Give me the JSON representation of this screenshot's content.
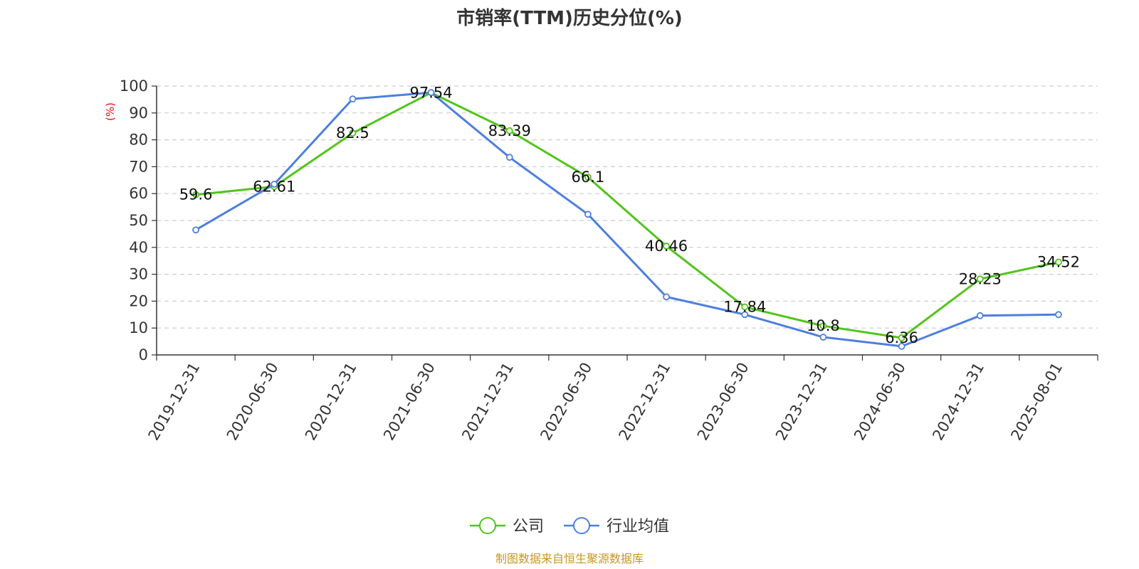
{
  "chart_data": {
    "type": "line",
    "title": "市销率(TTM)历史分位(%)",
    "ylabel": "(%)",
    "ylim": [
      0,
      100
    ],
    "yticks": [
      "0",
      "10",
      "20",
      "30",
      "40",
      "50",
      "60",
      "70",
      "80",
      "90",
      "100"
    ],
    "grid": true,
    "legend_position": "bottom-center",
    "categories": [
      "2019-12-31",
      "2020-06-30",
      "2020-12-31",
      "2021-06-30",
      "2021-12-31",
      "2022-06-30",
      "2022-12-31",
      "2023-06-30",
      "2023-12-31",
      "2024-06-30",
      "2024-12-31",
      "2025-08-01"
    ],
    "series": [
      {
        "name": "公司",
        "color": "#52c41a",
        "values": [
          59.6,
          62.61,
          82.5,
          97.54,
          83.39,
          66.1,
          40.46,
          17.84,
          10.8,
          6.36,
          28.23,
          34.52
        ],
        "labels": [
          "59.6",
          "62.61",
          "82.5",
          "97.54",
          "83.39",
          "66.1",
          "40.46",
          "17.84",
          "10.8",
          "6.36",
          "28.23",
          "34.52"
        ]
      },
      {
        "name": "行业均值",
        "color": "#4e7fdf",
        "values": [
          46.5,
          63.5,
          95.2,
          97.6,
          73.5,
          52.3,
          21.6,
          15.0,
          6.6,
          3.2,
          14.6,
          15.0
        ]
      }
    ],
    "source": "制图数据来自恒生聚源数据库"
  }
}
